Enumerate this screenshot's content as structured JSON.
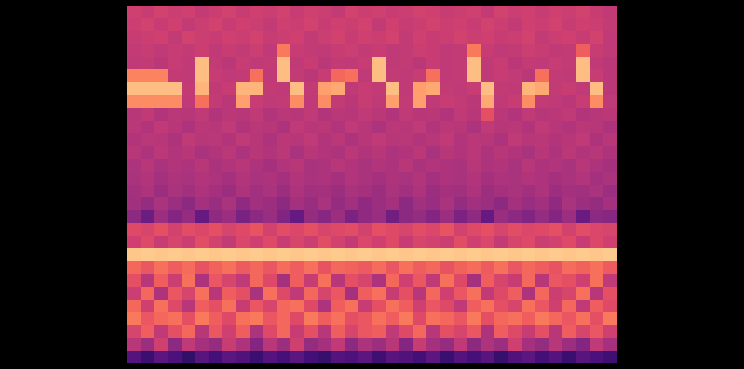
{
  "chart_data": {
    "type": "heatmap",
    "color": "magma",
    "zlim": [
      0,
      1
    ],
    "tick_labels": false,
    "cells": [
      [
        0.56,
        0.54,
        0.57,
        0.55,
        0.56,
        0.53,
        0.55,
        0.57,
        0.54,
        0.56,
        0.55,
        0.57,
        0.54,
        0.56,
        0.55,
        0.53,
        0.57,
        0.55,
        0.56,
        0.54,
        0.55,
        0.57,
        0.56,
        0.54,
        0.55,
        0.56,
        0.53,
        0.57,
        0.55,
        0.56,
        0.54,
        0.56,
        0.55,
        0.57,
        0.54,
        0.52
      ],
      [
        0.55,
        0.57,
        0.54,
        0.56,
        0.53,
        0.55,
        0.57,
        0.54,
        0.56,
        0.55,
        0.53,
        0.56,
        0.55,
        0.57,
        0.54,
        0.56,
        0.55,
        0.57,
        0.53,
        0.56,
        0.54,
        0.55,
        0.57,
        0.55,
        0.56,
        0.54,
        0.57,
        0.55,
        0.53,
        0.56,
        0.55,
        0.57,
        0.54,
        0.56,
        0.55,
        0.53
      ],
      [
        0.54,
        0.55,
        0.56,
        0.53,
        0.57,
        0.55,
        0.54,
        0.56,
        0.55,
        0.57,
        0.54,
        0.55,
        0.56,
        0.53,
        0.55,
        0.57,
        0.54,
        0.56,
        0.55,
        0.57,
        0.53,
        0.56,
        0.54,
        0.55,
        0.57,
        0.55,
        0.56,
        0.54,
        0.55,
        0.57,
        0.53,
        0.55,
        0.56,
        0.54,
        0.57,
        0.52
      ],
      [
        0.53,
        0.54,
        0.52,
        0.54,
        0.53,
        0.55,
        0.52,
        0.54,
        0.53,
        0.55,
        0.52,
        0.72,
        0.54,
        0.53,
        0.52,
        0.54,
        0.55,
        0.53,
        0.54,
        0.52,
        0.53,
        0.55,
        0.54,
        0.52,
        0.53,
        0.72,
        0.54,
        0.52,
        0.53,
        0.55,
        0.54,
        0.52,
        0.53,
        0.66,
        0.54,
        0.52
      ],
      [
        0.52,
        0.53,
        0.51,
        0.54,
        0.52,
        0.86,
        0.53,
        0.51,
        0.54,
        0.52,
        0.53,
        0.86,
        0.52,
        0.54,
        0.51,
        0.53,
        0.52,
        0.54,
        0.86,
        0.52,
        0.53,
        0.51,
        0.54,
        0.52,
        0.53,
        0.86,
        0.52,
        0.54,
        0.51,
        0.53,
        0.52,
        0.54,
        0.53,
        0.86,
        0.52,
        0.51
      ],
      [
        0.74,
        0.74,
        0.74,
        0.53,
        0.52,
        0.86,
        0.54,
        0.52,
        0.53,
        0.7,
        0.52,
        0.86,
        0.53,
        0.51,
        0.54,
        0.68,
        0.7,
        0.52,
        0.86,
        0.53,
        0.52,
        0.54,
        0.7,
        0.52,
        0.53,
        0.86,
        0.52,
        0.54,
        0.53,
        0.51,
        0.7,
        0.53,
        0.52,
        0.86,
        0.54,
        0.51
      ],
      [
        0.86,
        0.86,
        0.86,
        0.86,
        0.53,
        0.84,
        0.52,
        0.54,
        0.84,
        0.84,
        0.53,
        0.52,
        0.86,
        0.53,
        0.8,
        0.82,
        0.52,
        0.54,
        0.53,
        0.86,
        0.52,
        0.8,
        0.82,
        0.53,
        0.52,
        0.54,
        0.86,
        0.53,
        0.52,
        0.84,
        0.82,
        0.53,
        0.54,
        0.52,
        0.86,
        0.51
      ],
      [
        0.76,
        0.76,
        0.76,
        0.76,
        0.52,
        0.7,
        0.53,
        0.51,
        0.8,
        0.54,
        0.52,
        0.53,
        0.76,
        0.52,
        0.76,
        0.53,
        0.51,
        0.54,
        0.52,
        0.8,
        0.53,
        0.8,
        0.52,
        0.54,
        0.53,
        0.51,
        0.82,
        0.52,
        0.54,
        0.76,
        0.53,
        0.52,
        0.51,
        0.54,
        0.76,
        0.52
      ],
      [
        0.5,
        0.52,
        0.49,
        0.51,
        0.5,
        0.52,
        0.49,
        0.51,
        0.5,
        0.52,
        0.49,
        0.51,
        0.5,
        0.52,
        0.49,
        0.51,
        0.5,
        0.52,
        0.51,
        0.49,
        0.52,
        0.5,
        0.51,
        0.49,
        0.52,
        0.5,
        0.62,
        0.51,
        0.49,
        0.52,
        0.5,
        0.51,
        0.52,
        0.49,
        0.5,
        0.51
      ],
      [
        0.51,
        0.49,
        0.52,
        0.5,
        0.48,
        0.51,
        0.5,
        0.52,
        0.49,
        0.51,
        0.5,
        0.48,
        0.52,
        0.5,
        0.51,
        0.49,
        0.52,
        0.5,
        0.48,
        0.51,
        0.5,
        0.52,
        0.49,
        0.51,
        0.5,
        0.48,
        0.52,
        0.5,
        0.51,
        0.49,
        0.52,
        0.5,
        0.49,
        0.51,
        0.5,
        0.48
      ],
      [
        0.49,
        0.51,
        0.5,
        0.48,
        0.52,
        0.5,
        0.51,
        0.49,
        0.52,
        0.5,
        0.48,
        0.51,
        0.5,
        0.52,
        0.49,
        0.51,
        0.48,
        0.5,
        0.52,
        0.5,
        0.51,
        0.49,
        0.5,
        0.52,
        0.49,
        0.51,
        0.5,
        0.48,
        0.52,
        0.5,
        0.51,
        0.49,
        0.5,
        0.52,
        0.48,
        0.5
      ],
      [
        0.5,
        0.48,
        0.51,
        0.49,
        0.5,
        0.47,
        0.49,
        0.51,
        0.48,
        0.5,
        0.49,
        0.51,
        0.47,
        0.5,
        0.49,
        0.48,
        0.51,
        0.49,
        0.5,
        0.48,
        0.49,
        0.51,
        0.47,
        0.5,
        0.49,
        0.51,
        0.48,
        0.5,
        0.49,
        0.47,
        0.5,
        0.48,
        0.51,
        0.49,
        0.5,
        0.48
      ],
      [
        0.48,
        0.5,
        0.47,
        0.49,
        0.48,
        0.5,
        0.47,
        0.49,
        0.5,
        0.48,
        0.46,
        0.49,
        0.5,
        0.47,
        0.48,
        0.5,
        0.49,
        0.47,
        0.49,
        0.48,
        0.5,
        0.47,
        0.49,
        0.48,
        0.47,
        0.5,
        0.48,
        0.49,
        0.47,
        0.5,
        0.48,
        0.49,
        0.47,
        0.5,
        0.48,
        0.46
      ],
      [
        0.47,
        0.49,
        0.46,
        0.48,
        0.47,
        0.49,
        0.48,
        0.46,
        0.49,
        0.47,
        0.48,
        0.46,
        0.49,
        0.47,
        0.48,
        0.46,
        0.49,
        0.47,
        0.46,
        0.48,
        0.47,
        0.49,
        0.46,
        0.48,
        0.47,
        0.49,
        0.46,
        0.48,
        0.47,
        0.49,
        0.48,
        0.46,
        0.47,
        0.49,
        0.46,
        0.47
      ],
      [
        0.46,
        0.48,
        0.44,
        0.47,
        0.45,
        0.48,
        0.46,
        0.44,
        0.48,
        0.45,
        0.47,
        0.44,
        0.48,
        0.45,
        0.46,
        0.44,
        0.47,
        0.46,
        0.44,
        0.47,
        0.45,
        0.48,
        0.44,
        0.46,
        0.45,
        0.48,
        0.44,
        0.46,
        0.47,
        0.45,
        0.48,
        0.44,
        0.46,
        0.45,
        0.47,
        0.44
      ],
      [
        0.45,
        0.42,
        0.47,
        0.44,
        0.4,
        0.46,
        0.43,
        0.47,
        0.41,
        0.45,
        0.44,
        0.4,
        0.46,
        0.43,
        0.47,
        0.42,
        0.45,
        0.41,
        0.44,
        0.46,
        0.4,
        0.45,
        0.43,
        0.47,
        0.42,
        0.45,
        0.44,
        0.4,
        0.46,
        0.43,
        0.45,
        0.41,
        0.47,
        0.44,
        0.42,
        0.46
      ],
      [
        0.4,
        0.32,
        0.44,
        0.38,
        0.42,
        0.3,
        0.41,
        0.44,
        0.35,
        0.4,
        0.43,
        0.37,
        0.3,
        0.42,
        0.39,
        0.44,
        0.36,
        0.41,
        0.43,
        0.33,
        0.4,
        0.42,
        0.38,
        0.44,
        0.36,
        0.41,
        0.3,
        0.43,
        0.4,
        0.37,
        0.42,
        0.38,
        0.44,
        0.31,
        0.4,
        0.39
      ],
      [
        0.6,
        0.58,
        0.62,
        0.57,
        0.61,
        0.59,
        0.62,
        0.58,
        0.6,
        0.63,
        0.57,
        0.61,
        0.59,
        0.62,
        0.58,
        0.6,
        0.61,
        0.57,
        0.62,
        0.6,
        0.58,
        0.61,
        0.59,
        0.63,
        0.57,
        0.6,
        0.62,
        0.58,
        0.61,
        0.59,
        0.6,
        0.62,
        0.57,
        0.61,
        0.59,
        0.58
      ],
      [
        0.56,
        0.6,
        0.54,
        0.58,
        0.55,
        0.61,
        0.57,
        0.53,
        0.59,
        0.56,
        0.6,
        0.54,
        0.58,
        0.55,
        0.61,
        0.57,
        0.53,
        0.59,
        0.56,
        0.6,
        0.54,
        0.58,
        0.57,
        0.55,
        0.61,
        0.56,
        0.59,
        0.53,
        0.58,
        0.6,
        0.55,
        0.57,
        0.6,
        0.54,
        0.59,
        0.56
      ],
      [
        0.88,
        0.89,
        0.88,
        0.89,
        0.88,
        0.89,
        0.88,
        0.89,
        0.88,
        0.89,
        0.88,
        0.89,
        0.88,
        0.89,
        0.88,
        0.89,
        0.88,
        0.89,
        0.88,
        0.89,
        0.88,
        0.89,
        0.88,
        0.89,
        0.88,
        0.89,
        0.88,
        0.89,
        0.88,
        0.89,
        0.88,
        0.89,
        0.88,
        0.89,
        0.88,
        0.89
      ],
      [
        0.68,
        0.64,
        0.7,
        0.66,
        0.69,
        0.63,
        0.67,
        0.7,
        0.65,
        0.68,
        0.64,
        0.69,
        0.66,
        0.7,
        0.63,
        0.68,
        0.67,
        0.65,
        0.69,
        0.64,
        0.7,
        0.66,
        0.68,
        0.63,
        0.67,
        0.69,
        0.65,
        0.7,
        0.64,
        0.68,
        0.66,
        0.63,
        0.69,
        0.67,
        0.7,
        0.65
      ],
      [
        0.62,
        0.5,
        0.66,
        0.55,
        0.7,
        0.48,
        0.64,
        0.58,
        0.52,
        0.68,
        0.6,
        0.46,
        0.66,
        0.54,
        0.7,
        0.5,
        0.62,
        0.58,
        0.48,
        0.68,
        0.56,
        0.64,
        0.52,
        0.7,
        0.6,
        0.46,
        0.66,
        0.58,
        0.54,
        0.68,
        0.5,
        0.64,
        0.62,
        0.56,
        0.7,
        0.52
      ],
      [
        0.55,
        0.68,
        0.48,
        0.64,
        0.58,
        0.7,
        0.5,
        0.66,
        0.62,
        0.47,
        0.7,
        0.6,
        0.52,
        0.68,
        0.58,
        0.64,
        0.46,
        0.66,
        0.7,
        0.54,
        0.62,
        0.5,
        0.68,
        0.56,
        0.64,
        0.7,
        0.52,
        0.6,
        0.66,
        0.48,
        0.68,
        0.55,
        0.58,
        0.7,
        0.5,
        0.62
      ],
      [
        0.68,
        0.56,
        0.7,
        0.6,
        0.5,
        0.66,
        0.62,
        0.7,
        0.54,
        0.64,
        0.58,
        0.68,
        0.7,
        0.6,
        0.48,
        0.66,
        0.7,
        0.54,
        0.62,
        0.7,
        0.66,
        0.56,
        0.64,
        0.6,
        0.52,
        0.66,
        0.7,
        0.62,
        0.58,
        0.7,
        0.64,
        0.56,
        0.68,
        0.52,
        0.66,
        0.6
      ],
      [
        0.72,
        0.64,
        0.68,
        0.7,
        0.62,
        0.72,
        0.66,
        0.6,
        0.7,
        0.72,
        0.64,
        0.68,
        0.6,
        0.72,
        0.66,
        0.7,
        0.62,
        0.64,
        0.7,
        0.66,
        0.72,
        0.6,
        0.7,
        0.68,
        0.64,
        0.72,
        0.62,
        0.68,
        0.7,
        0.66,
        0.72,
        0.68,
        0.64,
        0.7,
        0.62,
        0.72
      ],
      [
        0.58,
        0.66,
        0.52,
        0.62,
        0.68,
        0.5,
        0.64,
        0.56,
        0.66,
        0.48,
        0.6,
        0.68,
        0.54,
        0.62,
        0.5,
        0.66,
        0.58,
        0.64,
        0.66,
        0.52,
        0.6,
        0.68,
        0.5,
        0.62,
        0.58,
        0.64,
        0.48,
        0.66,
        0.6,
        0.54,
        0.62,
        0.5,
        0.66,
        0.58,
        0.64,
        0.56
      ],
      [
        0.5,
        0.44,
        0.56,
        0.4,
        0.52,
        0.46,
        0.42,
        0.54,
        0.48,
        0.38,
        0.5,
        0.44,
        0.56,
        0.42,
        0.46,
        0.52,
        0.4,
        0.48,
        0.44,
        0.5,
        0.38,
        0.54,
        0.46,
        0.42,
        0.52,
        0.4,
        0.48,
        0.44,
        0.56,
        0.46,
        0.42,
        0.5,
        0.44,
        0.38,
        0.52,
        0.46
      ],
      [
        0.26,
        0.2,
        0.28,
        0.24,
        0.18,
        0.27,
        0.22,
        0.28,
        0.25,
        0.2,
        0.26,
        0.23,
        0.28,
        0.22,
        0.19,
        0.26,
        0.24,
        0.28,
        0.21,
        0.27,
        0.25,
        0.22,
        0.28,
        0.2,
        0.26,
        0.23,
        0.27,
        0.19,
        0.25,
        0.28,
        0.22,
        0.26,
        0.2,
        0.27,
        0.24,
        0.21
      ]
    ]
  }
}
